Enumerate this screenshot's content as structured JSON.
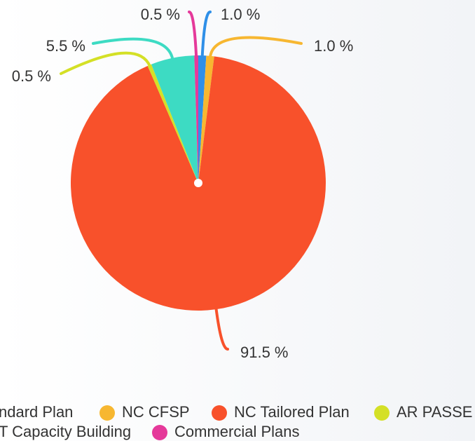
{
  "chart_data": {
    "type": "pie",
    "series": [
      {
        "name": "ndard Plan",
        "color": "#2f8fe8",
        "values": [
          1.0
        ],
        "value_labels": [
          "1.0 %"
        ]
      },
      {
        "name": "NC CFSP",
        "color": "#f7b731",
        "values": [
          1.0
        ],
        "value_labels": [
          "1.0 %"
        ]
      },
      {
        "name": "NC Tailored Plan",
        "color": "#f8512b",
        "values": [
          91.5
        ],
        "value_labels": [
          "91.5 %"
        ]
      },
      {
        "name": "AR PASSE",
        "color": "#d4e026",
        "values": [
          0.5
        ],
        "value_labels": [
          "0.5 %"
        ]
      },
      {
        "name": "T Capacity Building",
        "color": "#3ddbc3",
        "values": [
          5.5
        ],
        "value_labels": [
          "5.5 %"
        ]
      },
      {
        "name": "Commercial Plans",
        "color": "#e5399a",
        "values": [
          0.5
        ],
        "value_labels": [
          "0.5 %"
        ]
      }
    ]
  }
}
